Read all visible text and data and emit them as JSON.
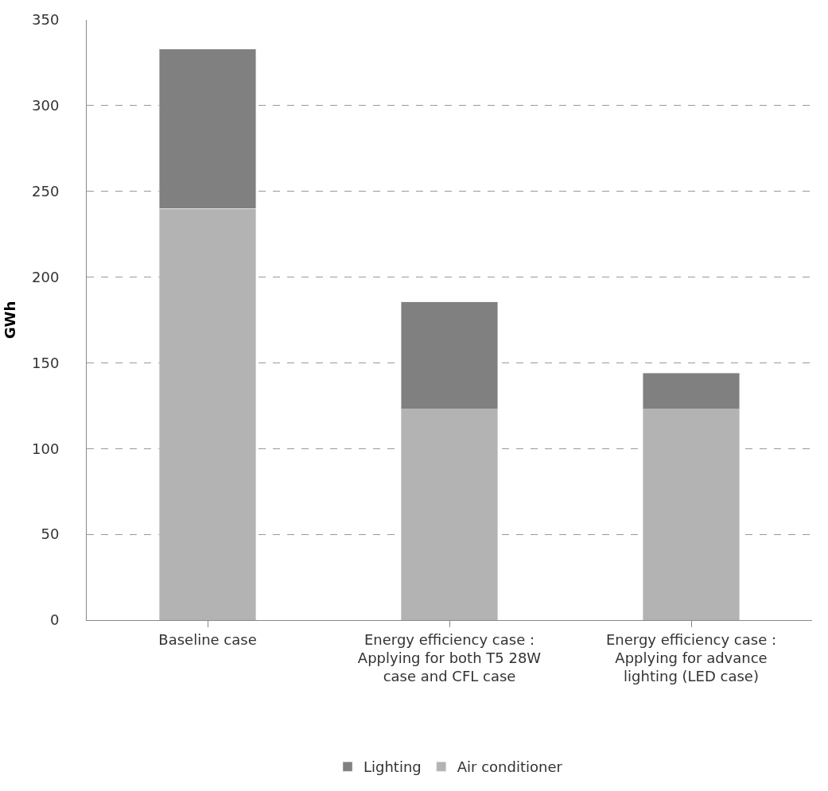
{
  "chart_data": {
    "type": "bar",
    "stacked": true,
    "ylabel": "GWh",
    "categories": [
      "Baseline case",
      "Energy efficiency case : Applying for both T5 28W case and CFL case",
      "Energy efficiency case : Applying for advance lighting (LED case)"
    ],
    "series": [
      {
        "name": "Air conditioner",
        "color": "#b3b3b3",
        "values": [
          240,
          123,
          123
        ]
      },
      {
        "name": "Lighting",
        "color": "#808080",
        "values": [
          93,
          62.5,
          21
        ]
      }
    ],
    "ylim": [
      0,
      350
    ],
    "yticks": [
      0,
      50,
      100,
      150,
      200,
      250,
      300,
      350
    ],
    "grid": "y",
    "legend": "bottom"
  }
}
